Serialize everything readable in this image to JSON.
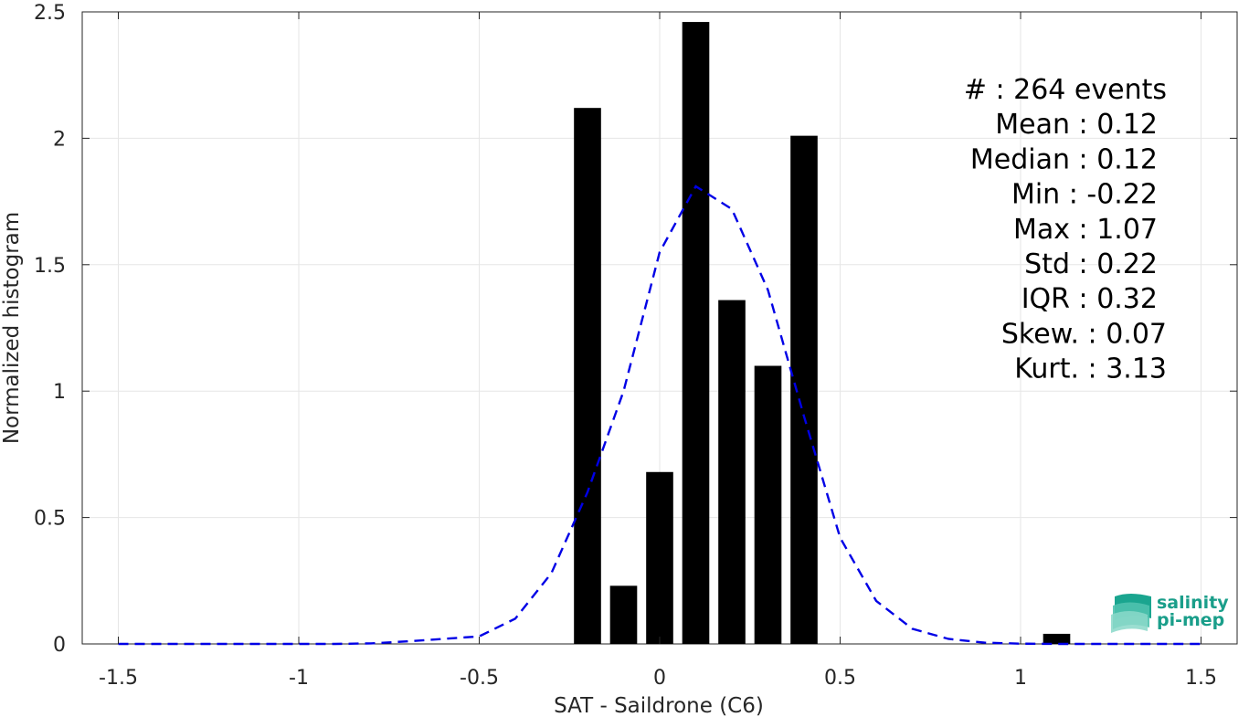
{
  "chart_data": {
    "type": "bar",
    "xlabel": "SAT - Saildrone (C6)",
    "ylabel": "Normalized histogram",
    "xlim": [
      -1.6,
      1.6
    ],
    "ylim": [
      0,
      2.5
    ],
    "xticks": [
      -1.5,
      -1,
      -0.5,
      0,
      0.5,
      1,
      1.5
    ],
    "xtick_labels": [
      "-1.5",
      "-1",
      "-0.5",
      "0",
      "0.5",
      "1",
      "1.5"
    ],
    "yticks": [
      0,
      0.5,
      1,
      1.5,
      2,
      2.5
    ],
    "ytick_labels": [
      "0",
      "0.5",
      "1",
      "1.5",
      "2",
      "2.5"
    ],
    "grid": true,
    "bar_width": 0.075,
    "bar_color": "#000000",
    "bars": [
      {
        "x": -0.2,
        "y": 2.12
      },
      {
        "x": -0.1,
        "y": 0.23
      },
      {
        "x": 0.0,
        "y": 0.68
      },
      {
        "x": 0.1,
        "y": 2.46
      },
      {
        "x": 0.2,
        "y": 1.36
      },
      {
        "x": 0.3,
        "y": 1.1
      },
      {
        "x": 0.4,
        "y": 2.01
      },
      {
        "x": 1.1,
        "y": 0.04
      }
    ],
    "fit_line": {
      "style": "dashed",
      "color": "#0000e6",
      "x": [
        -1.5,
        -1.4,
        -1.3,
        -1.2,
        -1.1,
        -1.0,
        -0.9,
        -0.8,
        -0.7,
        -0.6,
        -0.5,
        -0.4,
        -0.3,
        -0.2,
        -0.1,
        0.0,
        0.1,
        0.2,
        0.3,
        0.4,
        0.5,
        0.6,
        0.7,
        0.8,
        0.9,
        1.0,
        1.1,
        1.2,
        1.3,
        1.4,
        1.5
      ],
      "y": [
        0,
        0,
        0,
        0,
        0,
        0,
        0,
        0.002,
        0.01,
        0.02,
        0.03,
        0.1,
        0.28,
        0.6,
        1.0,
        1.55,
        1.81,
        1.72,
        1.4,
        0.9,
        0.42,
        0.17,
        0.06,
        0.02,
        0.005,
        0.001,
        0,
        0,
        0,
        0,
        0
      ]
    },
    "stats": [
      "#  : 264 events",
      "Mean : 0.12",
      "Median : 0.12",
      "Min : -0.22",
      "Max : 1.07",
      "Std : 0.22",
      "IQR : 0.32",
      "Skew. : 0.07",
      "Kurt. : 3.13"
    ]
  },
  "logo": {
    "line1": "salinity",
    "line2": "pi-mep",
    "icon": "wave-bars-icon",
    "colors": [
      "#1aa58f",
      "#4fc2ae",
      "#8ad8c9"
    ]
  }
}
